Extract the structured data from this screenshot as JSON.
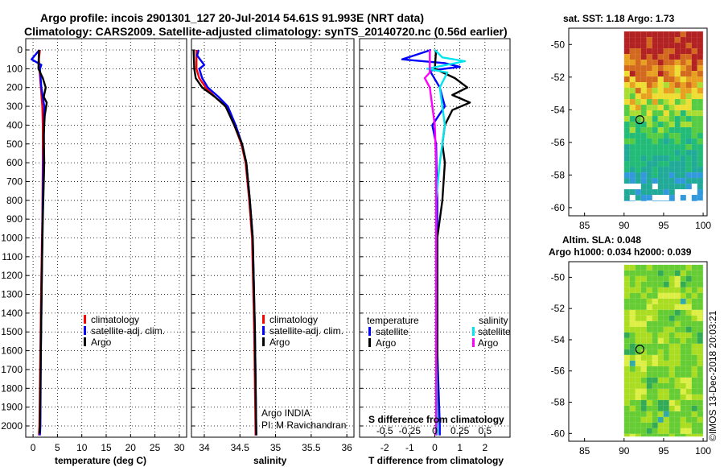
{
  "title_line1": "Argo profile: incois 2901301_127 20-Jul-2014 54.61S 91.993E (NRT data)",
  "title_line2": "Climatology: CARS2009. Satellite-adjusted climatology: synTS_20140720.nc (0.56d earlier)",
  "depth_ticks": [
    0,
    100,
    200,
    300,
    400,
    500,
    600,
    700,
    800,
    900,
    1000,
    1100,
    1200,
    1300,
    1400,
    1500,
    1600,
    1700,
    1800,
    1900,
    2000
  ],
  "credit": "©IMOS 13-Dec-2018 20:03:21",
  "chart_data": [
    {
      "type": "line",
      "id": "temperature",
      "xlabel": "temperature (deg C)",
      "ylabel": "",
      "xlim": [
        -1.5,
        31.5
      ],
      "ylim": [
        2060,
        -60
      ],
      "xticks": [
        0,
        5,
        10,
        15,
        20,
        25,
        30
      ],
      "xtick_labels": [
        "0",
        "5",
        "10",
        "15",
        "20",
        "25",
        "30"
      ],
      "legend": [
        "climatology",
        "satellite-adj. clim.",
        "Argo"
      ],
      "legend_colors": [
        "#ff0000",
        "#0000ff",
        "#000000"
      ],
      "series": [
        {
          "name": "climatology",
          "color": "#ff0000",
          "points": [
            [
              1.4,
              0
            ],
            [
              1.2,
              50
            ],
            [
              1.3,
              100
            ],
            [
              1.6,
              200
            ],
            [
              1.9,
              300
            ],
            [
              2.0,
              400
            ],
            [
              2.0,
              600
            ],
            [
              1.9,
              900
            ],
            [
              1.7,
              1200
            ],
            [
              1.5,
              1600
            ],
            [
              1.3,
              2000
            ],
            [
              1.2,
              2050
            ]
          ]
        },
        {
          "name": "satellite-adj. clim.",
          "color": "#0000ff",
          "points": [
            [
              1.3,
              0
            ],
            [
              -0.3,
              50
            ],
            [
              1.7,
              80
            ],
            [
              1.4,
              100
            ],
            [
              1.7,
              200
            ],
            [
              2.3,
              300
            ],
            [
              2.2,
              500
            ],
            [
              2.0,
              800
            ],
            [
              1.8,
              1200
            ],
            [
              1.6,
              1600
            ],
            [
              1.5,
              2000
            ],
            [
              1.4,
              2050
            ]
          ]
        },
        {
          "name": "Argo",
          "color": "#000000",
          "points": [
            [
              1.2,
              0
            ],
            [
              1.1,
              100
            ],
            [
              2.0,
              150
            ],
            [
              2.6,
              200
            ],
            [
              2.2,
              250
            ],
            [
              2.8,
              280
            ],
            [
              2.4,
              350
            ],
            [
              2.2,
              450
            ],
            [
              2.3,
              600
            ],
            [
              2.0,
              900
            ],
            [
              1.8,
              1200
            ],
            [
              1.6,
              1600
            ],
            [
              1.4,
              2000
            ],
            [
              1.3,
              2040
            ]
          ]
        }
      ]
    },
    {
      "type": "line",
      "id": "salinity",
      "xlabel": "salinity",
      "ylabel": "",
      "xlim": [
        33.82,
        36.1
      ],
      "ylim": [
        2060,
        -60
      ],
      "xticks": [
        34,
        34.5,
        35,
        35.5,
        36
      ],
      "xtick_labels": [
        "34",
        "34.5",
        "35",
        "35.5",
        "36"
      ],
      "legend": [
        "climatology",
        "satellite-adj. clim.",
        "Argo"
      ],
      "legend_colors": [
        "#ff0000",
        "#0000ff",
        "#000000"
      ],
      "annotation_1": "Argo INDIA",
      "annotation_2": "PI: M Ravichandran",
      "series": [
        {
          "name": "climatology",
          "color": "#ff0000",
          "points": [
            [
              33.89,
              0
            ],
            [
              33.89,
              100
            ],
            [
              33.93,
              150
            ],
            [
              34.02,
              200
            ],
            [
              34.15,
              250
            ],
            [
              34.3,
              300
            ],
            [
              34.42,
              400
            ],
            [
              34.52,
              500
            ],
            [
              34.58,
              600
            ],
            [
              34.63,
              800
            ],
            [
              34.67,
              1000
            ],
            [
              34.7,
              1500
            ],
            [
              34.72,
              2050
            ]
          ]
        },
        {
          "name": "satellite-adj. clim.",
          "color": "#0000ff",
          "points": [
            [
              33.92,
              0
            ],
            [
              33.9,
              30
            ],
            [
              34.0,
              80
            ],
            [
              33.93,
              100
            ],
            [
              33.97,
              150
            ],
            [
              34.05,
              200
            ],
            [
              34.2,
              250
            ],
            [
              34.33,
              300
            ],
            [
              34.44,
              400
            ],
            [
              34.53,
              500
            ],
            [
              34.59,
              600
            ],
            [
              34.64,
              800
            ],
            [
              34.68,
              1000
            ],
            [
              34.71,
              1500
            ],
            [
              34.73,
              2050
            ]
          ]
        },
        {
          "name": "Argo",
          "color": "#000000",
          "points": [
            [
              33.85,
              0
            ],
            [
              33.86,
              100
            ],
            [
              33.88,
              150
            ],
            [
              33.97,
              200
            ],
            [
              34.15,
              250
            ],
            [
              34.3,
              300
            ],
            [
              34.42,
              400
            ],
            [
              34.53,
              500
            ],
            [
              34.59,
              600
            ],
            [
              34.64,
              800
            ],
            [
              34.68,
              1000
            ],
            [
              34.71,
              1500
            ],
            [
              34.73,
              2050
            ]
          ]
        }
      ]
    },
    {
      "type": "line",
      "id": "difference",
      "xlabel": "T difference from climatology",
      "xlabel_top": "S difference from climatology",
      "ylabel": "",
      "xlim": [
        -3.0,
        3.0
      ],
      "ylim": [
        2060,
        -60
      ],
      "xticks": [
        -2,
        -1,
        0,
        1,
        2
      ],
      "xtick_labels": [
        "-2",
        "-1",
        "0",
        "1",
        "2"
      ],
      "s_scale_note": "S difference axis: 0.25 psu per 1 deg C",
      "s_ticks": [
        -0.5,
        -0.25,
        0,
        0.25,
        0.5
      ],
      "s_tick_labels": [
        "-0.5",
        "-0.25",
        "0",
        "0.25",
        "0.5"
      ],
      "legend_temperature_title": "temperature",
      "legend_salinity_title": "salinity",
      "legend_temperature": [
        "satellite",
        "Argo"
      ],
      "legend_salinity": [
        "satellite",
        "Argo"
      ],
      "legend_temperature_colors": [
        "#0000ff",
        "#000000"
      ],
      "legend_salinity_colors": [
        "#00e5ee",
        "#ff00ff"
      ],
      "series": [
        {
          "name": "T satellite",
          "color": "#0000ff",
          "points": [
            [
              -0.15,
              0
            ],
            [
              -1.3,
              50
            ],
            [
              0.4,
              70
            ],
            [
              1.0,
              90
            ],
            [
              -0.2,
              110
            ],
            [
              0.2,
              200
            ],
            [
              0.4,
              300
            ],
            [
              -0.1,
              400
            ],
            [
              0.05,
              500
            ],
            [
              0.1,
              800
            ],
            [
              0.1,
              1200
            ],
            [
              0.1,
              1600
            ],
            [
              0.2,
              2000
            ],
            [
              0.2,
              2050
            ]
          ]
        },
        {
          "name": "T Argo",
          "color": "#000000",
          "points": [
            [
              0.05,
              0
            ],
            [
              0.0,
              100
            ],
            [
              0.8,
              150
            ],
            [
              1.3,
              200
            ],
            [
              0.7,
              240
            ],
            [
              1.4,
              280
            ],
            [
              0.7,
              320
            ],
            [
              0.4,
              400
            ],
            [
              0.3,
              500
            ],
            [
              0.4,
              600
            ],
            [
              0.3,
              800
            ],
            [
              0.1,
              1000
            ],
            [
              0.1,
              1500
            ],
            [
              0.1,
              2040
            ]
          ]
        },
        {
          "name": "S satellite",
          "color": "#00e5ee",
          "points": [
            [
              0.0,
              0
            ],
            [
              0.3,
              40
            ],
            [
              1.2,
              60
            ],
            [
              -0.3,
              100
            ],
            [
              0.5,
              120
            ],
            [
              0.2,
              200
            ],
            [
              0.3,
              300
            ],
            [
              0.4,
              400
            ],
            [
              0.2,
              600
            ],
            [
              0.05,
              800
            ],
            [
              0.05,
              1200
            ],
            [
              0.05,
              1600
            ],
            [
              0.1,
              2000
            ],
            [
              0.1,
              2050
            ]
          ]
        },
        {
          "name": "S Argo",
          "color": "#ff00ff",
          "points": [
            [
              -0.2,
              0
            ],
            [
              -0.2,
              120
            ],
            [
              -0.4,
              150
            ],
            [
              -0.2,
              200
            ],
            [
              -0.1,
              300
            ],
            [
              0.0,
              400
            ],
            [
              0.05,
              600
            ],
            [
              0.05,
              800
            ],
            [
              0.05,
              1200
            ],
            [
              0.05,
              1600
            ],
            [
              0.05,
              2000
            ],
            [
              0.05,
              2050
            ]
          ]
        }
      ]
    },
    {
      "type": "heatmap",
      "id": "sst_map",
      "title": "sat. SST: 1.18 Argo: 1.73",
      "xlim": [
        83,
        100.5
      ],
      "ylim": [
        -60.5,
        -49
      ],
      "xticks": [
        85,
        90,
        95,
        100
      ],
      "xtick_labels": [
        "85",
        "90",
        "95",
        "100"
      ],
      "yticks": [
        -50,
        -52,
        -54,
        -56,
        -58,
        -60
      ],
      "ytick_labels": [
        "-50",
        "-52",
        "-54",
        "-56",
        "-58",
        "-60"
      ],
      "data_extent": {
        "lon": [
          90,
          100
        ],
        "lat": [
          -59.6,
          -49.2
        ]
      },
      "argo_position": {
        "lon": 91.993,
        "lat": -54.61
      }
    },
    {
      "type": "heatmap",
      "id": "sla_map",
      "title_line1": "Altim. SLA: 0.048",
      "title_line2": "Argo h1000: 0.034 h2000: 0.039",
      "xlim": [
        83,
        100.5
      ],
      "ylim": [
        -60.5,
        -49
      ],
      "xticks": [
        85,
        90,
        95,
        100
      ],
      "xtick_labels": [
        "85",
        "90",
        "95",
        "100"
      ],
      "yticks": [
        -50,
        -52,
        -54,
        -56,
        -58,
        -60
      ],
      "ytick_labels": [
        "-50",
        "-52",
        "-54",
        "-56",
        "-58",
        "-60"
      ],
      "data_extent": {
        "lon": [
          90,
          100
        ],
        "lat": [
          -60.2,
          -49.2
        ]
      },
      "argo_position": {
        "lon": 91.993,
        "lat": -54.61
      }
    }
  ]
}
